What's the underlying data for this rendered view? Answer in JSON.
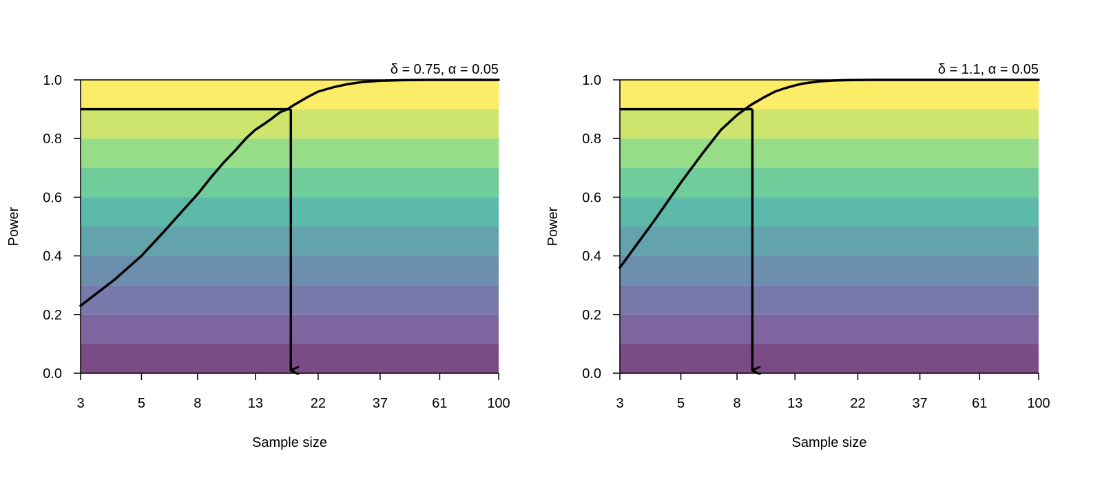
{
  "chart_data": [
    {
      "type": "line",
      "title": "",
      "annotation": "δ = 0.75, α = 0.05",
      "xlabel": "Sample size",
      "ylabel": "Power",
      "x_scale": "log",
      "xlim": [
        3,
        100
      ],
      "ylim": [
        0,
        1
      ],
      "x_ticks": [
        3,
        5,
        8,
        13,
        22,
        37,
        61,
        100
      ],
      "x_tick_labels": [
        "3",
        "5",
        "8",
        "13",
        "22",
        "37",
        "61",
        "100"
      ],
      "y_ticks": [
        0,
        0.2,
        0.4,
        0.6,
        0.8,
        1.0
      ],
      "y_tick_labels": [
        "0.0",
        "0.2",
        "0.4",
        "0.6",
        "0.8",
        "1.0"
      ],
      "background_bands": {
        "edges": [
          0,
          0.1,
          0.2,
          0.3,
          0.4,
          0.5,
          0.6,
          0.7,
          0.8,
          0.9,
          1.0
        ],
        "colors": [
          "#7b4b86",
          "#7e65a0",
          "#7679aa",
          "#6b8fac",
          "#63a3ab",
          "#5dbaab",
          "#70cd9b",
          "#97dc87",
          "#cde56d",
          "#fdec67"
        ]
      },
      "series": [
        {
          "x": [
            3,
            4,
            5,
            6,
            7,
            8,
            9,
            10,
            11,
            12,
            13,
            14,
            15,
            16,
            17,
            18,
            20,
            22,
            25,
            28,
            32,
            37,
            45,
            55,
            70,
            100
          ],
          "y": [
            0.23,
            0.32,
            0.4,
            0.48,
            0.55,
            0.61,
            0.67,
            0.72,
            0.76,
            0.8,
            0.83,
            0.85,
            0.87,
            0.89,
            0.9,
            0.915,
            0.94,
            0.96,
            0.975,
            0.985,
            0.993,
            0.997,
            0.999,
            1.0,
            1.0,
            1.0
          ]
        }
      ],
      "target_power": 0.9,
      "required_n": 17.5
    },
    {
      "type": "line",
      "title": "",
      "annotation": "δ = 1.1, α = 0.05",
      "xlabel": "Sample size",
      "ylabel": "Power",
      "x_scale": "log",
      "xlim": [
        3,
        100
      ],
      "ylim": [
        0,
        1
      ],
      "x_ticks": [
        3,
        5,
        8,
        13,
        22,
        37,
        61,
        100
      ],
      "x_tick_labels": [
        "3",
        "5",
        "8",
        "13",
        "22",
        "37",
        "61",
        "100"
      ],
      "y_ticks": [
        0,
        0.2,
        0.4,
        0.6,
        0.8,
        1.0
      ],
      "y_tick_labels": [
        "0.0",
        "0.2",
        "0.4",
        "0.6",
        "0.8",
        "1.0"
      ],
      "background_bands": {
        "edges": [
          0,
          0.1,
          0.2,
          0.3,
          0.4,
          0.5,
          0.6,
          0.7,
          0.8,
          0.9,
          1.0
        ],
        "colors": [
          "#7b4b86",
          "#7e65a0",
          "#7679aa",
          "#6b8fac",
          "#63a3ab",
          "#5dbaab",
          "#70cd9b",
          "#97dc87",
          "#cde56d",
          "#fdec67"
        ]
      },
      "series": [
        {
          "x": [
            3,
            4,
            5,
            6,
            7,
            8,
            9,
            10,
            11,
            12,
            13,
            14,
            16,
            18,
            20,
            25,
            30,
            40,
            60,
            100
          ],
          "y": [
            0.36,
            0.52,
            0.65,
            0.75,
            0.83,
            0.88,
            0.915,
            0.94,
            0.96,
            0.972,
            0.981,
            0.988,
            0.995,
            0.998,
            0.999,
            1.0,
            1.0,
            1.0,
            1.0,
            1.0
          ]
        }
      ],
      "target_power": 0.9,
      "required_n": 9.1
    }
  ]
}
